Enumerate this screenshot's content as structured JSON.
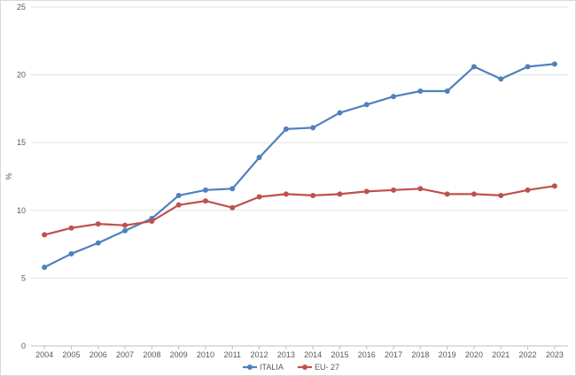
{
  "chart_data": {
    "type": "line",
    "title": "",
    "xlabel": "",
    "ylabel": "%",
    "ylim": [
      0,
      25
    ],
    "yticks": [
      0,
      5,
      10,
      15,
      20,
      25
    ],
    "grid": true,
    "legend_position": "bottom",
    "categories": [
      "2004",
      "2005",
      "2006",
      "2007",
      "2008",
      "2009",
      "2010",
      "2011",
      "2012",
      "2013",
      "2014",
      "2015",
      "2016",
      "2017",
      "2018",
      "2019",
      "2020",
      "2021",
      "2022",
      "2023"
    ],
    "series": [
      {
        "name": "ITALIA",
        "color": "#4e81bd",
        "values": [
          5.8,
          6.8,
          7.6,
          8.5,
          9.4,
          11.1,
          11.5,
          11.6,
          13.9,
          16.0,
          16.1,
          17.2,
          17.8,
          18.4,
          18.8,
          18.8,
          20.6,
          19.7,
          20.6,
          20.8
        ]
      },
      {
        "name": "EU- 27",
        "color": "#c0504d",
        "values": [
          8.2,
          8.7,
          9.0,
          8.9,
          9.2,
          10.4,
          10.7,
          10.2,
          11.0,
          11.2,
          11.1,
          11.2,
          11.4,
          11.5,
          11.6,
          11.2,
          11.2,
          11.1,
          11.5,
          11.8
        ]
      }
    ]
  }
}
